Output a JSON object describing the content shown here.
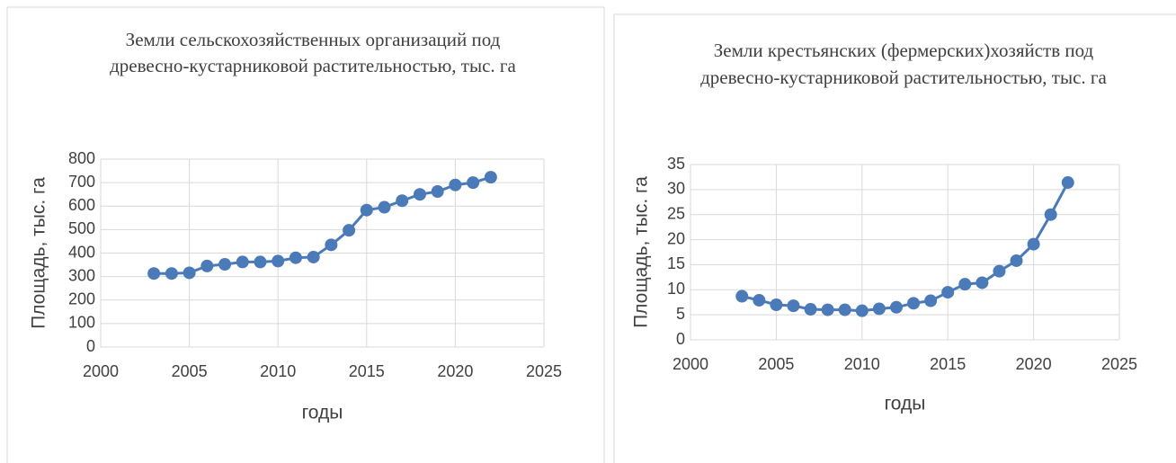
{
  "chart_data": [
    {
      "type": "line",
      "title": "Земли сельскохозяйственных организаций под древесно-кустарниковой растительностью, тыс. га",
      "xlabel": "годы",
      "ylabel": "Площадь, тыс. га",
      "x": [
        2003,
        2004,
        2005,
        2006,
        2007,
        2008,
        2009,
        2010,
        2011,
        2012,
        2013,
        2014,
        2015,
        2016,
        2017,
        2018,
        2019,
        2020,
        2021,
        2022
      ],
      "series": [
        {
          "name": "Площадь",
          "color": "#4a7ab8",
          "values": [
            313,
            313,
            316,
            345,
            352,
            362,
            362,
            366,
            380,
            383,
            435,
            497,
            583,
            595,
            623,
            650,
            662,
            690,
            700,
            723
          ]
        }
      ],
      "xlim": [
        2000,
        2025
      ],
      "xticks": [
        2000,
        2005,
        2010,
        2015,
        2020,
        2025
      ],
      "ylim": [
        0,
        800
      ],
      "yticks": [
        0,
        100,
        200,
        300,
        400,
        500,
        600,
        700,
        800
      ],
      "grid": true
    },
    {
      "type": "line",
      "title": "Земли крестьянских (фермерских)хозяйств под древесно-кустарниковой растительностью, тыс. га",
      "xlabel": "годы",
      "ylabel": "Площадь, тыс. га",
      "x": [
        2003,
        2004,
        2005,
        2006,
        2007,
        2008,
        2009,
        2010,
        2011,
        2012,
        2013,
        2014,
        2015,
        2016,
        2017,
        2018,
        2019,
        2020,
        2021,
        2022
      ],
      "series": [
        {
          "name": "Площадь",
          "color": "#4a7ab8",
          "values": [
            8.7,
            7.9,
            7.0,
            6.8,
            6.1,
            6.0,
            6.0,
            5.8,
            6.2,
            6.5,
            7.3,
            7.8,
            9.5,
            11.1,
            11.4,
            13.7,
            15.8,
            19.1,
            25.0,
            31.4
          ]
        }
      ],
      "xlim": [
        2000,
        2025
      ],
      "xticks": [
        2000,
        2005,
        2010,
        2015,
        2020,
        2025
      ],
      "ylim": [
        0,
        35
      ],
      "yticks": [
        0,
        5,
        10,
        15,
        20,
        25,
        30,
        35
      ],
      "grid": true
    }
  ]
}
